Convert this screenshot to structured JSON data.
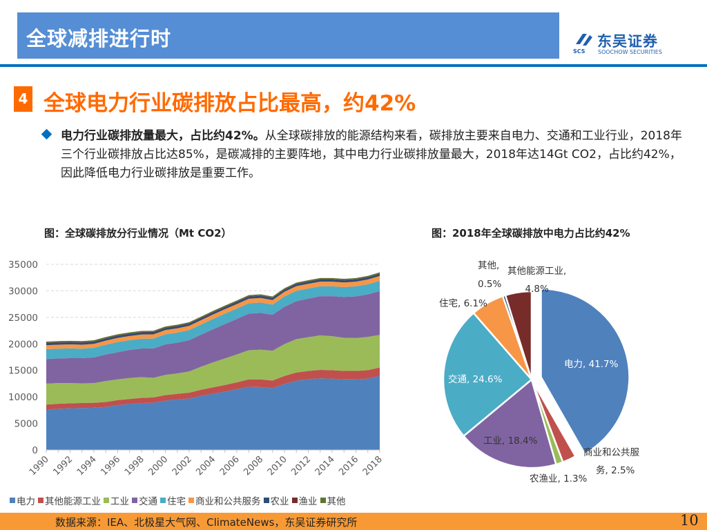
{
  "header": {
    "title": "全球减排进行时",
    "logo_cn": "东吴证券",
    "logo_en": "SOOCHOW SECURITIES",
    "logo_mark": "SCS",
    "accent": "#558ed5"
  },
  "section": {
    "number": "4",
    "heading": "全球电力行业碳排放占比最高，约42%",
    "accent": "#ff6a00"
  },
  "body": {
    "lead": "电力行业碳排放量最大，占比约42%。",
    "text": "从全球碳排放的能源结构来看，碳排放主要来自电力、交通和工业行业，2018年三个行业碳排放占比达85%，是碳减排的主要阵地，其中电力行业碳排放量最大，2018年达14Gt CO2，占比约42%，因此降低电力行业碳排放是重要工作。"
  },
  "chart_data": [
    {
      "type": "area",
      "stacked": true,
      "title": "图：全球碳排放分行业情况（Mt CO2）",
      "xlabel": "",
      "ylabel": "",
      "ylim": [
        0,
        35000
      ],
      "yticks": [
        "0",
        "5000",
        "10000",
        "15000",
        "20000",
        "25000",
        "30000",
        "35000"
      ],
      "x": [
        1990,
        1991,
        1992,
        1993,
        1994,
        1995,
        1996,
        1997,
        1998,
        1999,
        2000,
        2001,
        2002,
        2003,
        2004,
        2005,
        2006,
        2007,
        2008,
        2009,
        2010,
        2011,
        2012,
        2013,
        2014,
        2015,
        2016,
        2017,
        2018
      ],
      "xtick_labels": [
        "1990",
        "1992",
        "1994",
        "1996",
        "1998",
        "2000",
        "2002",
        "2004",
        "2006",
        "2008",
        "2010",
        "2012",
        "2014",
        "2016",
        "2018"
      ],
      "grid": "horizontal dashed",
      "legend": "bottom",
      "series": [
        {
          "name": "电力",
          "color": "#4f81bd",
          "values": [
            7600,
            7750,
            7850,
            7900,
            7950,
            8100,
            8450,
            8650,
            8850,
            8900,
            9300,
            9500,
            9700,
            10200,
            10600,
            11000,
            11450,
            11900,
            11850,
            11650,
            12450,
            13050,
            13350,
            13500,
            13450,
            13300,
            13300,
            13450,
            13950
          ]
        },
        {
          "name": "其他能源工业",
          "color": "#c0504d",
          "values": [
            950,
            950,
            950,
            950,
            950,
            950,
            950,
            960,
            980,
            1000,
            1050,
            1080,
            1100,
            1150,
            1200,
            1250,
            1300,
            1400,
            1450,
            1450,
            1500,
            1550,
            1550,
            1600,
            1600,
            1600,
            1600,
            1600,
            1600
          ]
        },
        {
          "name": "工业",
          "color": "#9bbb59",
          "values": [
            3950,
            3900,
            3800,
            3700,
            3700,
            3950,
            3900,
            3950,
            3900,
            3700,
            3800,
            3850,
            4000,
            4350,
            4700,
            5000,
            5250,
            5500,
            5600,
            5600,
            6000,
            6300,
            6350,
            6500,
            6400,
            6250,
            6200,
            6250,
            6150
          ]
        },
        {
          "name": "交通",
          "color": "#8064a2",
          "values": [
            4650,
            4650,
            4700,
            4750,
            4850,
            5000,
            5150,
            5300,
            5400,
            5550,
            5750,
            5800,
            5900,
            6050,
            6250,
            6500,
            6700,
            6900,
            6950,
            6800,
            7050,
            7150,
            7300,
            7400,
            7550,
            7700,
            7850,
            8050,
            8250
          ]
        },
        {
          "name": "住宅",
          "color": "#4bacc6",
          "values": [
            1850,
            1850,
            1850,
            1800,
            1800,
            1850,
            1900,
            1850,
            1850,
            1850,
            1900,
            1900,
            1900,
            1900,
            1950,
            1950,
            1950,
            1950,
            1950,
            1900,
            1950,
            1950,
            1900,
            1850,
            1850,
            1850,
            1900,
            1900,
            1950
          ]
        },
        {
          "name": "商业和公共服务",
          "color": "#f79646",
          "values": [
            750,
            750,
            750,
            750,
            750,
            760,
            780,
            780,
            780,
            790,
            800,
            800,
            810,
            820,
            830,
            840,
            850,
            860,
            860,
            850,
            870,
            880,
            880,
            880,
            880,
            880,
            880,
            890,
            900
          ]
        },
        {
          "name": "农业",
          "color": "#2c4d75",
          "values": [
            400,
            400,
            400,
            400,
            400,
            400,
            400,
            400,
            400,
            400,
            400,
            400,
            400,
            400,
            400,
            400,
            400,
            400,
            400,
            400,
            400,
            400,
            400,
            400,
            400,
            400,
            400,
            400,
            400
          ]
        },
        {
          "name": "渔业",
          "color": "#772c2a",
          "values": [
            90,
            90,
            90,
            90,
            90,
            90,
            90,
            90,
            90,
            90,
            90,
            90,
            90,
            90,
            90,
            90,
            90,
            90,
            90,
            90,
            90,
            90,
            90,
            90,
            90,
            90,
            90,
            90,
            90
          ]
        },
        {
          "name": "其他",
          "color": "#5f7530",
          "values": [
            190,
            190,
            190,
            190,
            190,
            190,
            190,
            190,
            190,
            190,
            190,
            190,
            190,
            190,
            190,
            190,
            190,
            190,
            190,
            190,
            190,
            190,
            190,
            190,
            190,
            190,
            190,
            190,
            190
          ]
        }
      ]
    },
    {
      "type": "pie",
      "title": "图：2018年全球碳排放中电力占比约42%",
      "unit": "%",
      "slices": [
        {
          "name": "电力",
          "value": 41.7,
          "label": "电力, 41.7%",
          "color": "#4f81bd",
          "exploded": true
        },
        {
          "name": "商业和公共服务",
          "value": 2.5,
          "label_line1": "商业和公共服",
          "label_line2": "务, 2.5%",
          "color": "#c0504d"
        },
        {
          "name": "农渔业",
          "value": 1.3,
          "label": "农渔业, 1.3%",
          "color": "#9bbb59"
        },
        {
          "name": "工业",
          "value": 18.4,
          "label": "工业, 18.4%",
          "color": "#8064a2"
        },
        {
          "name": "交通",
          "value": 24.6,
          "label": "交通, 24.6%",
          "color": "#4bacc6"
        },
        {
          "name": "住宅",
          "value": 6.1,
          "label": "住宅, 6.1%",
          "color": "#f79646"
        },
        {
          "name": "其他",
          "value": 0.5,
          "label_line1": "其他,",
          "label_line2": "0.5%",
          "color": "#1f497d"
        },
        {
          "name": "其他能源工业",
          "value": 4.8,
          "label_line1": "其他能源工业,",
          "label_line2": "4.8%",
          "color": "#772c2a"
        }
      ]
    }
  ],
  "footer": {
    "source": "数据来源：IEA、北极星大气网、ClimateNews，东吴证券研究所",
    "page": "10",
    "color": "#f79a36"
  }
}
